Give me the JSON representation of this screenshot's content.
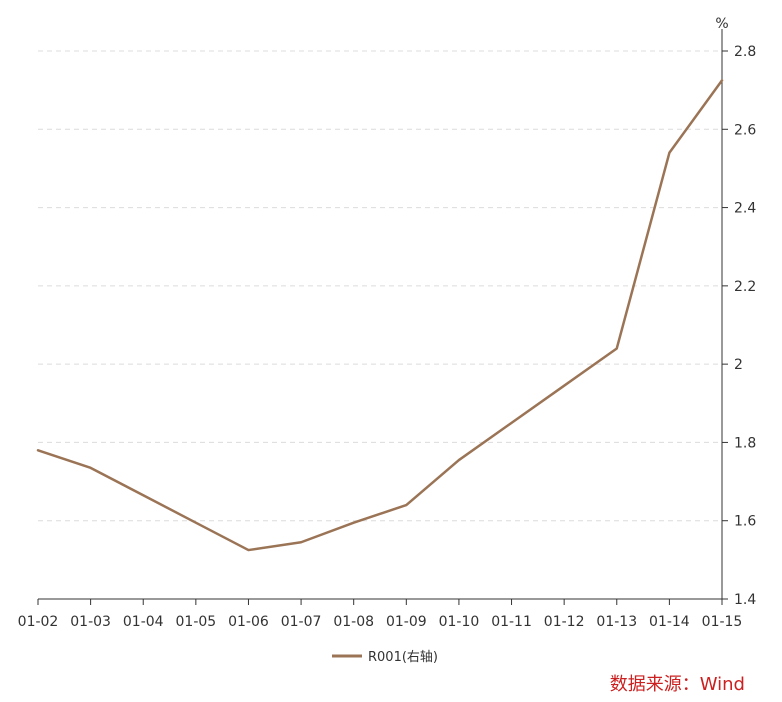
{
  "chart_data": {
    "type": "line",
    "x": [
      "01-02",
      "01-03",
      "01-04",
      "01-05",
      "01-06",
      "01-07",
      "01-08",
      "01-09",
      "01-10",
      "01-11",
      "01-12",
      "01-13",
      "01-14",
      "01-15"
    ],
    "series": [
      {
        "name": "R001(右轴)",
        "color": "#9b7456",
        "values": [
          1.78,
          1.735,
          1.665,
          1.595,
          1.525,
          1.545,
          1.595,
          1.64,
          1.755,
          1.85,
          1.945,
          2.04,
          2.54,
          2.725
        ]
      }
    ],
    "y_axis": {
      "side": "right",
      "unit": "%",
      "ylim": [
        1.4,
        2.8
      ],
      "ticks": [
        1.4,
        1.6,
        1.8,
        2.0,
        2.2,
        2.4,
        2.6,
        2.8
      ],
      "tick_labels": [
        "1.4",
        "1.6",
        "1.8",
        "2",
        "2.2",
        "2.4",
        "2.6",
        "2.8"
      ]
    },
    "grid": "horizontal-dashed",
    "legend_position": "bottom-center",
    "source": "数据来源：Wind"
  }
}
